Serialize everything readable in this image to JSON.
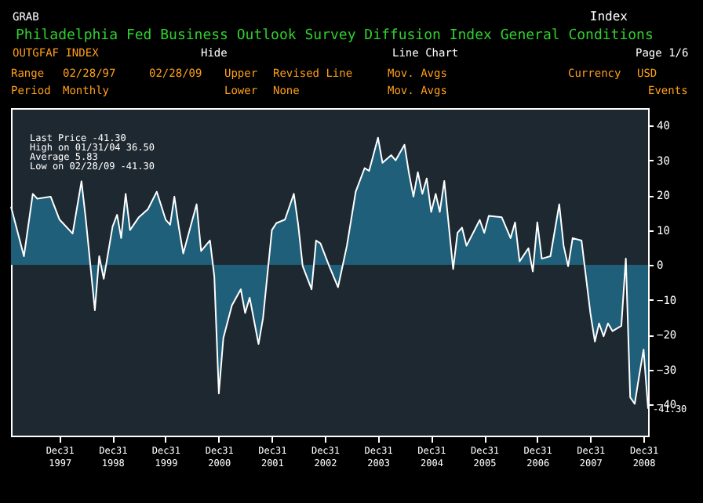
{
  "chart_data": {
    "type": "area",
    "title": "Philadelphia Fed Business Outlook Survey Diffusion Index General Conditions",
    "subtitle": "Index",
    "x": [
      "1997-02",
      "1997-05",
      "1997-07",
      "1997-08",
      "1997-11",
      "1998-01",
      "1998-04",
      "1998-06",
      "1998-07",
      "1998-09",
      "1998-10",
      "1998-11",
      "1999-01",
      "1999-02",
      "1999-03",
      "1999-04",
      "1999-05",
      "1999-07",
      "1999-09",
      "1999-11",
      "2000-01",
      "2000-02",
      "2000-03",
      "2000-04",
      "2000-05",
      "2000-08",
      "2000-09",
      "2000-11",
      "2000-12",
      "2001-01",
      "2001-02",
      "2001-04",
      "2001-06",
      "2001-07",
      "2001-08",
      "2001-10",
      "2001-11",
      "2002-01",
      "2002-02",
      "2002-04",
      "2002-06",
      "2002-07",
      "2002-08",
      "2002-10",
      "2002-11",
      "2002-12",
      "2003-02",
      "2003-04",
      "2003-06",
      "2003-08",
      "2003-10",
      "2003-11",
      "2004-01",
      "2004-02",
      "2004-04",
      "2004-05",
      "2004-07",
      "2004-08",
      "2004-09",
      "2004-10",
      "2004-11",
      "2004-12",
      "2005-01",
      "2005-02",
      "2005-03",
      "2005-04",
      "2005-06",
      "2005-07",
      "2005-08",
      "2005-09",
      "2005-12",
      "2006-01",
      "2006-02",
      "2006-05",
      "2006-07",
      "2006-08",
      "2006-09",
      "2006-11",
      "2006-12",
      "2007-01",
      "2007-02",
      "2007-04",
      "2007-06",
      "2007-07",
      "2007-08",
      "2007-09",
      "2007-11",
      "2008-01",
      "2008-02",
      "2008-03",
      "2008-04",
      "2008-05",
      "2008-06",
      "2008-08",
      "2008-09",
      "2008-10",
      "2008-11",
      "2008-12",
      "2009-01",
      "2009-02"
    ],
    "series": [
      {
        "color": "#1f5f7a",
        "values": [
          16.7,
          2.5,
          20.4,
          19,
          19.6,
          13,
          9,
          24,
          13,
          -13,
          2.5,
          -4,
          11,
          14.4,
          7.7,
          20.4,
          10,
          13.7,
          16,
          21,
          13,
          11.5,
          19.6,
          10.7,
          3.3,
          17.4,
          4,
          7,
          -3.4,
          -36.9,
          -21,
          -11.6,
          -7,
          -13.8,
          -9.4,
          -22.7,
          -15.3,
          10,
          12,
          13,
          20.4,
          11.5,
          -0.4,
          -7,
          7,
          6.2,
          -0.5,
          -6.4,
          5.5,
          21.1,
          27.8,
          27,
          36.5,
          29.3,
          31.5,
          30,
          34.5,
          26.3,
          19.6,
          26.6,
          20.4,
          24.8,
          15.2,
          20.4,
          15.2,
          24.1,
          -1.2,
          9.2,
          10.7,
          5.5,
          12.9,
          9.2,
          14.1,
          13.7,
          7.7,
          12.2,
          1,
          4.8,
          -1.9,
          12.2,
          1.8,
          2.5,
          17.4,
          5.5,
          -0.4,
          7.7,
          7,
          -13.8,
          -22,
          -16.8,
          -20.5,
          -16.8,
          -19,
          -17.5,
          1.8,
          -38,
          -39.9,
          -32,
          -24.3,
          -41.3
        ]
      }
    ],
    "xticks": [
      {
        "value": "1997-12-31",
        "label": "Dec31 1997"
      },
      {
        "value": "1998-12-31",
        "label": "Dec31 1998"
      },
      {
        "value": "1999-12-31",
        "label": "Dec31 1999"
      },
      {
        "value": "2000-12-31",
        "label": "Dec31 2000"
      },
      {
        "value": "2001-12-31",
        "label": "Dec31 2001"
      },
      {
        "value": "2002-12-31",
        "label": "Dec31 2002"
      },
      {
        "value": "2003-12-31",
        "label": "Dec31 2003"
      },
      {
        "value": "2004-12-31",
        "label": "Dec31 2004"
      },
      {
        "value": "2005-12-31",
        "label": "Dec31 2005"
      },
      {
        "value": "2006-12-31",
        "label": "Dec31 2006"
      },
      {
        "value": "2007-12-31",
        "label": "Dec31 2007"
      },
      {
        "value": "2008-12-31",
        "label": "Dec31 2008"
      }
    ],
    "xlim": [
      "1997-02",
      "2009-02"
    ],
    "ylim": [
      -49,
      45
    ],
    "yticks": [
      -40,
      -30,
      -20,
      -10,
      0,
      10,
      20,
      30,
      40
    ],
    "annotations": [
      "GRAB",
      "OUTGFAF INDEX",
      "Hide",
      "Line Chart",
      "Page 1/6",
      "Range",
      "02/28/97",
      "02/28/09",
      "Upper",
      "Revised Line",
      "Mov. Avgs",
      "Currency",
      "USD",
      "Period",
      "Monthly",
      "Lower",
      "None",
      "Mov. Avgs",
      "Events",
      "Last Price -41.30",
      "High on 01/31/04 36.50",
      "Average 5.83",
      "Low on 02/28/09 -41.30",
      {
        "text": "-41.30",
        "x": "2009-02",
        "y": -41.3
      }
    ],
    "grid": false
  }
}
